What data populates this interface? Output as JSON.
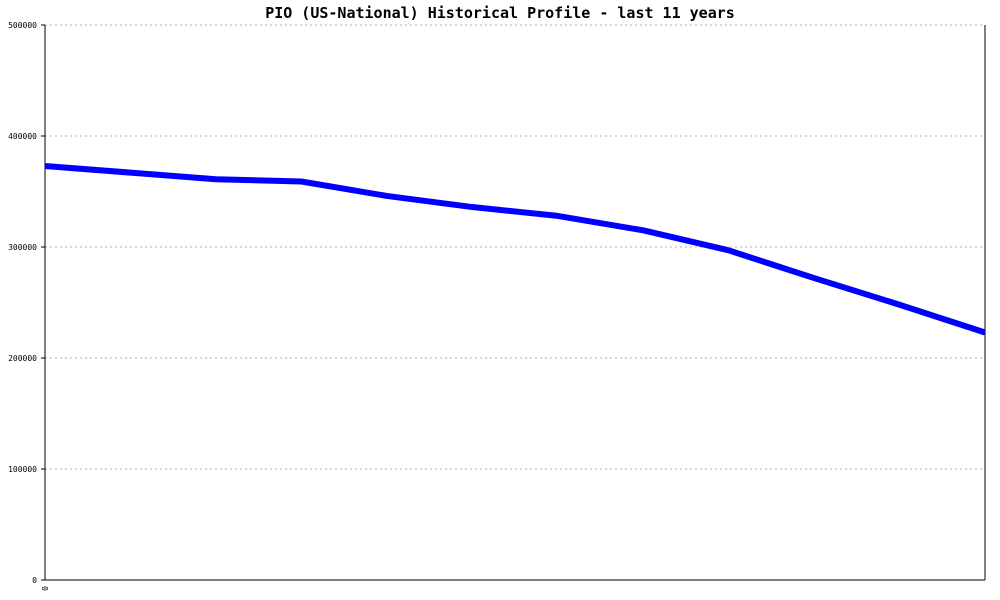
{
  "chart_data": {
    "type": "line",
    "title": "PIO (US-National) Historical Profile - last 11 years",
    "xlabel": "",
    "ylabel": "",
    "ylim": [
      0,
      500000
    ],
    "yticks": [
      "0",
      "100000",
      "200000",
      "300000",
      "400000",
      "500000"
    ],
    "xticks": [
      "0"
    ],
    "grid": true,
    "series": [
      {
        "color": "#0000ff",
        "values": [
          373000,
          367000,
          361000,
          359000,
          346000,
          336000,
          328000,
          315000,
          297000,
          272000,
          248000,
          223000
        ]
      }
    ]
  }
}
